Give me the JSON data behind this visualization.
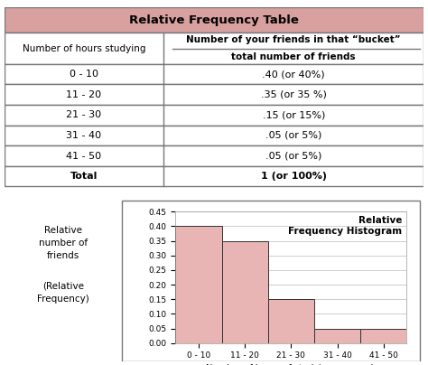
{
  "table_title": "Relative Frequency Table",
  "table_title_bg": "#d9a0a0",
  "col1_header": "Number of hours studying",
  "col2_header_line1": "Number of your friends in that “bucket”",
  "col2_header_line2": "total number of friends",
  "rows": [
    {
      "range": "0 - 10",
      "value": ".40 (or 40%)"
    },
    {
      "range": "11 - 20",
      "value": ".35 (or 35 %)"
    },
    {
      "range": "21 - 30",
      "value": ".15 (or 15%)"
    },
    {
      "range": "31 - 40",
      "value": ".05 (or 5%)"
    },
    {
      "range": "41 - 50",
      "value": ".05 (or 5%)"
    }
  ],
  "total_label": "Total",
  "total_value": "1 (or 100%)",
  "bar_categories": [
    "0 - 10",
    "11 - 20",
    "21 - 30",
    "31 - 40",
    "41 - 50"
  ],
  "bar_values": [
    0.4,
    0.35,
    0.15,
    0.05,
    0.05
  ],
  "bar_color": "#e8b4b4",
  "bar_edge_color": "#333333",
  "hist_title": "Relative\nFrequency Histogram",
  "hist_xlabel": "Number of hours of studying per week",
  "hist_ylabel_top": "Relative\nnumber of\nfriends",
  "hist_ylabel_bot": "(Relative\nFrequency)",
  "ylim": [
    0,
    0.45
  ],
  "yticks": [
    0.0,
    0.05,
    0.1,
    0.15,
    0.2,
    0.25,
    0.3,
    0.35,
    0.4,
    0.45
  ],
  "table_border_color": "#777777",
  "bg_color": "#ffffff",
  "fig_bg": "#e8e8e8"
}
